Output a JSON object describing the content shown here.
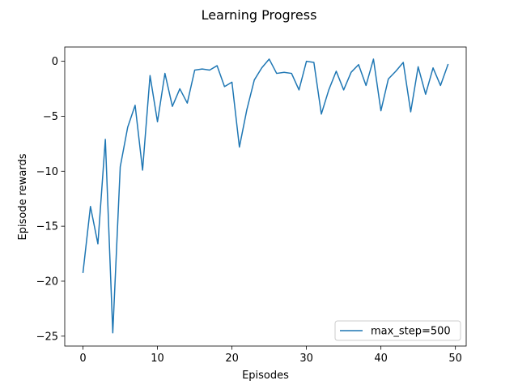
{
  "chart_data": {
    "type": "line",
    "title": "Learning Progress",
    "xlabel": "Episodes",
    "ylabel": "Episode rewards",
    "xlim": [
      -2.45,
      51.45
    ],
    "ylim": [
      -25.9,
      1.3
    ],
    "xticks": [
      0,
      10,
      20,
      30,
      40,
      50
    ],
    "yticks": [
      0,
      -5,
      -10,
      -15,
      -20,
      -25
    ],
    "xtick_labels": [
      "0",
      "10",
      "20",
      "30",
      "40",
      "50"
    ],
    "ytick_labels": [
      "0",
      "−5",
      "−10",
      "−15",
      "−20",
      "−25"
    ],
    "grid": false,
    "legend_position": "lower-right",
    "series": [
      {
        "name": "max_step=500",
        "color": "#1f77b4",
        "x": [
          0,
          1,
          2,
          3,
          4,
          5,
          6,
          7,
          8,
          9,
          10,
          11,
          12,
          13,
          14,
          15,
          16,
          17,
          18,
          19,
          20,
          21,
          22,
          23,
          24,
          25,
          26,
          27,
          28,
          29,
          30,
          31,
          32,
          33,
          34,
          35,
          36,
          37,
          38,
          39,
          40,
          41,
          42,
          43,
          44,
          45,
          46,
          47,
          48,
          49
        ],
        "values": [
          -19.2,
          -13.2,
          -16.6,
          -7.1,
          -24.7,
          -9.6,
          -6.0,
          -4.0,
          -9.9,
          -1.3,
          -5.5,
          -1.1,
          -4.1,
          -2.5,
          -3.8,
          -0.8,
          -0.7,
          -0.8,
          -0.4,
          -2.3,
          -1.9,
          -7.8,
          -4.4,
          -1.7,
          -0.6,
          0.2,
          -1.1,
          -1.0,
          -1.1,
          -2.6,
          0.0,
          -0.1,
          -4.8,
          -2.6,
          -0.9,
          -2.6,
          -1.0,
          -0.3,
          -2.2,
          0.2,
          -4.5,
          -1.6,
          -0.9,
          -0.1,
          -4.6,
          -0.5,
          -3.0,
          -0.6,
          -2.2,
          -0.3
        ]
      }
    ]
  }
}
